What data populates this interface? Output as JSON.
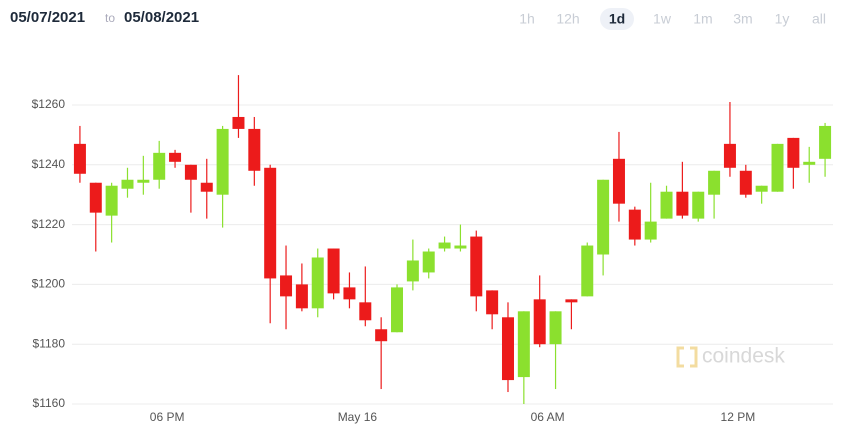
{
  "header": {
    "from": "05/07/2021",
    "separator": "to",
    "to": "05/08/2021"
  },
  "range_buttons": [
    "1h",
    "12h",
    "1d",
    "1w",
    "1m",
    "3m",
    "1y",
    "all"
  ],
  "selected_button": "1d",
  "watermark": "coindesk",
  "chart_data": {
    "type": "candlestick",
    "up_color": "#8be02e",
    "down_color": "#ec1b1b",
    "open": [
      1247,
      1234,
      1223,
      1232,
      1234,
      1235,
      1244,
      1240,
      1234,
      1230,
      1256,
      1252,
      1239,
      1203,
      1200,
      1192,
      1212,
      1199,
      1194,
      1185,
      1184,
      1201,
      1204,
      1212,
      1212,
      1216,
      1198,
      1189,
      1169,
      1195,
      1180,
      1195,
      1196,
      1210,
      1242,
      1225,
      1215,
      1222,
      1231,
      1222,
      1230,
      1247,
      1238,
      1231,
      1231,
      1249,
      1240,
      1242
    ],
    "high": [
      1253,
      1234,
      1234,
      1239,
      1243,
      1248,
      1245,
      1240,
      1242,
      1253,
      1270,
      1256,
      1240,
      1213,
      1207,
      1212,
      1212,
      1204,
      1206,
      1189,
      1200,
      1215,
      1212,
      1216,
      1220,
      1218,
      1198,
      1194,
      1191,
      1203,
      1191,
      1195,
      1214,
      1235,
      1251,
      1226,
      1234,
      1233,
      1241,
      1231,
      1238,
      1261,
      1240,
      1233,
      1247,
      1249,
      1246,
      1254
    ],
    "low": [
      1234,
      1211,
      1214,
      1229,
      1230,
      1232,
      1239,
      1224,
      1222,
      1219,
      1249,
      1233,
      1187,
      1185,
      1191,
      1189,
      1195,
      1192,
      1186,
      1165,
      1184,
      1198,
      1202,
      1211,
      1211,
      1191,
      1185,
      1164,
      1160,
      1179,
      1165,
      1185,
      1196,
      1203,
      1221,
      1213,
      1214,
      1222,
      1222,
      1221,
      1222,
      1236,
      1229,
      1227,
      1231,
      1232,
      1234,
      1236
    ],
    "close": [
      1237,
      1224,
      1233,
      1235,
      1235,
      1244,
      1241,
      1235,
      1231,
      1252,
      1252,
      1238,
      1202,
      1196,
      1192,
      1209,
      1197,
      1195,
      1188,
      1181,
      1199,
      1208,
      1211,
      1214,
      1213,
      1196,
      1190,
      1168,
      1191,
      1180,
      1191,
      1194,
      1213,
      1235,
      1227,
      1215,
      1221,
      1231,
      1223,
      1231,
      1238,
      1239,
      1230,
      1233,
      1247,
      1239,
      1241,
      1253
    ],
    "xlim": [
      -0.5,
      47.5
    ],
    "xticks": [
      {
        "value": 5.5,
        "label": "06 PM"
      },
      {
        "value": 17.5,
        "label": "May 16"
      },
      {
        "value": 29.5,
        "label": "06 AM"
      },
      {
        "value": 41.5,
        "label": "12 PM"
      }
    ],
    "ylim": [
      1160,
      1278
    ],
    "yticks": [
      {
        "value": 1160,
        "label": "$1160"
      },
      {
        "value": 1180,
        "label": "$1180"
      },
      {
        "value": 1200,
        "label": "$1200"
      },
      {
        "value": 1220,
        "label": "$1220"
      },
      {
        "value": 1240,
        "label": "$1240"
      },
      {
        "value": 1260,
        "label": "$1260"
      }
    ],
    "grid": true
  }
}
